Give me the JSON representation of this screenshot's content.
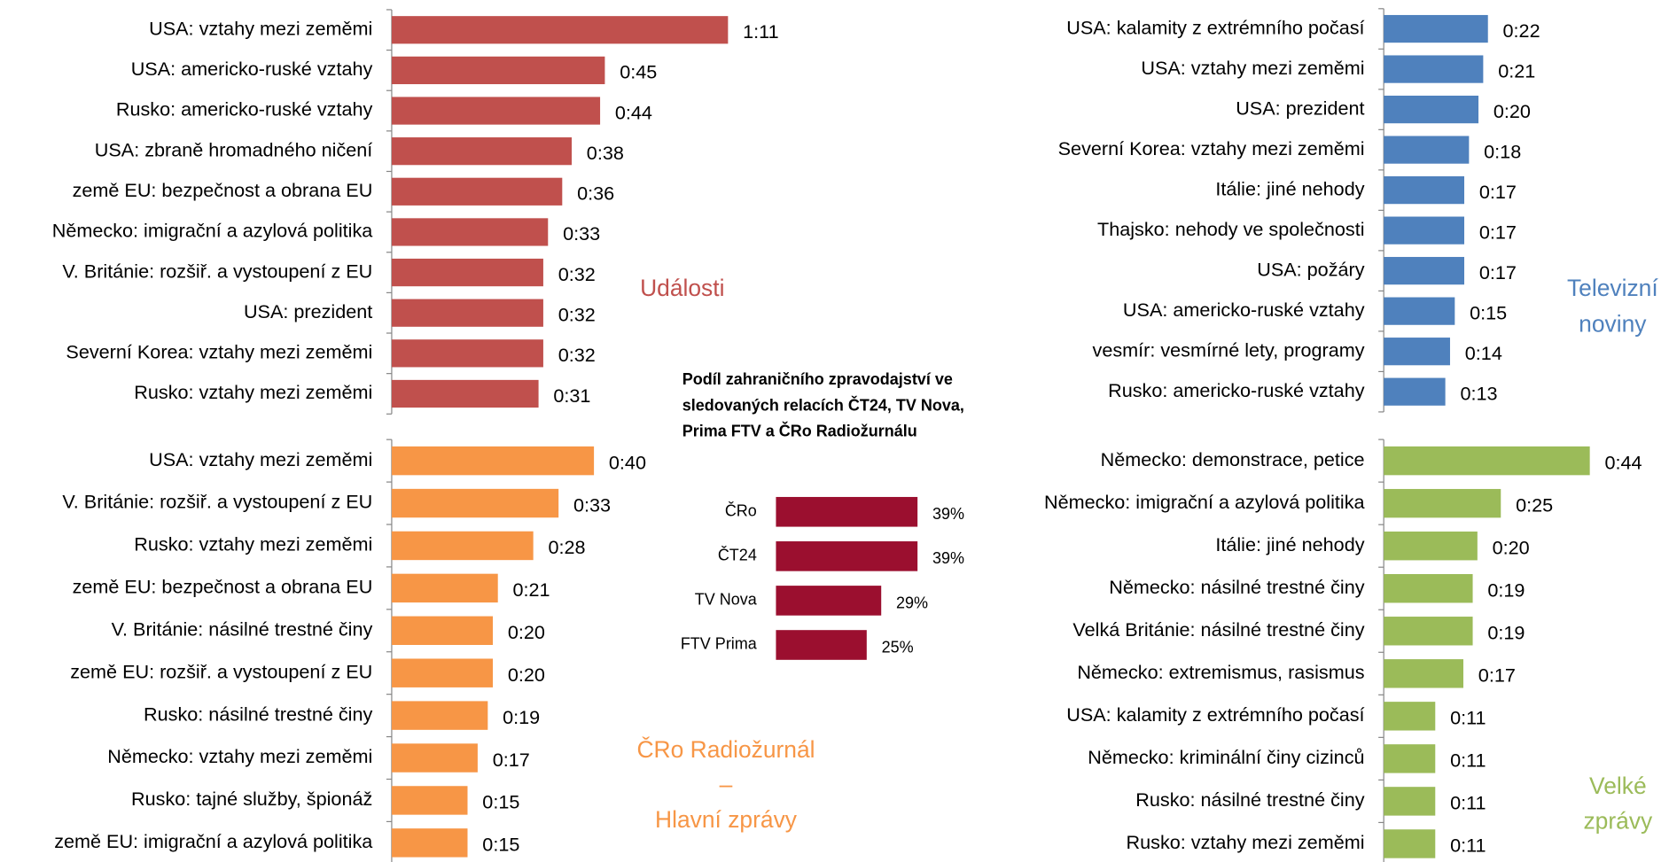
{
  "chart_data": [
    {
      "type": "bar",
      "orientation": "horizontal",
      "title": "Události",
      "color": "#c0504d",
      "categories": [
        "USA: vztahy mezi zeměmi",
        "USA: americko-ruské vztahy",
        "Rusko: americko-ruské vztahy",
        "USA: zbraně hromadného ničení",
        "země EU: bezpečnost a obrana EU",
        "Německo: imigrační a azylová politika",
        "V. Británie: rozšiř. a vystoupení z EU",
        "USA: prezident",
        "Severní Korea: vztahy mezi zeměmi",
        "Rusko: vztahy mezi zeměmi"
      ],
      "values": [
        71,
        45,
        44,
        38,
        36,
        33,
        32,
        32,
        32,
        31
      ],
      "value_labels": [
        "1:11",
        "0:45",
        "0:44",
        "0:38",
        "0:36",
        "0:33",
        "0:32",
        "0:32",
        "0:32",
        "0:31"
      ]
    },
    {
      "type": "bar",
      "orientation": "horizontal",
      "title": "Televizní\nnoviny",
      "color": "#4f81bd",
      "categories": [
        "USA: kalamity z extrémního počasí",
        "USA: vztahy mezi zeměmi",
        "USA: prezident",
        "Severní Korea: vztahy mezi zeměmi",
        "Itálie: jiné nehody",
        "Thajsko: nehody ve společnosti",
        "USA: požáry",
        "USA: americko-ruské vztahy",
        "vesmír: vesmírné lety, programy",
        "Rusko: americko-ruské vztahy"
      ],
      "values": [
        22,
        21,
        20,
        18,
        17,
        17,
        17,
        15,
        14,
        13
      ],
      "value_labels": [
        "0:22",
        "0:21",
        "0:20",
        "0:18",
        "0:17",
        "0:17",
        "0:17",
        "0:15",
        "0:14",
        "0:13"
      ]
    },
    {
      "type": "bar",
      "orientation": "horizontal",
      "title": "ČRo Radiožurnál\n–\nHlavní zprávy",
      "color": "#f79646",
      "categories": [
        "USA: vztahy mezi zeměmi",
        "V. Británie: rozšiř. a vystoupení z EU",
        "Rusko: vztahy mezi zeměmi",
        "země EU: bezpečnost a obrana EU",
        "V. Británie: násilné trestné činy",
        "země EU: rozšiř. a vystoupení z EU",
        "Rusko: násilné trestné činy",
        "Německo: vztahy mezi zeměmi",
        "Rusko: tajné služby, špionáž",
        "země EU: imigrační a azylová politika"
      ],
      "values": [
        40,
        33,
        28,
        21,
        20,
        20,
        19,
        17,
        15,
        15
      ],
      "value_labels": [
        "0:40",
        "0:33",
        "0:28",
        "0:21",
        "0:20",
        "0:20",
        "0:19",
        "0:17",
        "0:15",
        "0:15"
      ]
    },
    {
      "type": "bar",
      "orientation": "horizontal",
      "title": "Velké\nzprávy",
      "color": "#9bbb59",
      "categories": [
        "Německo: demonstrace, petice",
        "Německo: imigrační a azylová politika",
        "Itálie: jiné nehody",
        "Německo: násilné trestné činy",
        "Velká Británie: násilné trestné činy",
        "Německo: extremismus, rasismus",
        "USA: kalamity z extrémního počasí",
        "Německo: kriminální činy cizinců",
        "Rusko: násilné trestné činy",
        "Rusko: vztahy mezi zeměmi"
      ],
      "values": [
        44,
        25,
        20,
        19,
        19,
        17,
        11,
        11,
        11,
        11
      ],
      "value_labels": [
        "0:44",
        "0:25",
        "0:20",
        "0:19",
        "0:19",
        "0:17",
        "0:11",
        "0:11",
        "0:11",
        "0:11"
      ]
    },
    {
      "type": "bar",
      "orientation": "horizontal",
      "title": "Podíl zahraničního zpravodajství ve\nsledovaných relacích ČT24, TV Nova,\nPrima FTV a ČRo Radiožurnálu",
      "color": "#9b0f2f",
      "categories": [
        "ČRo",
        "ČT24",
        "TV Nova",
        "FTV Prima"
      ],
      "values": [
        39,
        39,
        29,
        25
      ],
      "value_labels": [
        "39%",
        "39%",
        "29%",
        "25%"
      ]
    }
  ]
}
